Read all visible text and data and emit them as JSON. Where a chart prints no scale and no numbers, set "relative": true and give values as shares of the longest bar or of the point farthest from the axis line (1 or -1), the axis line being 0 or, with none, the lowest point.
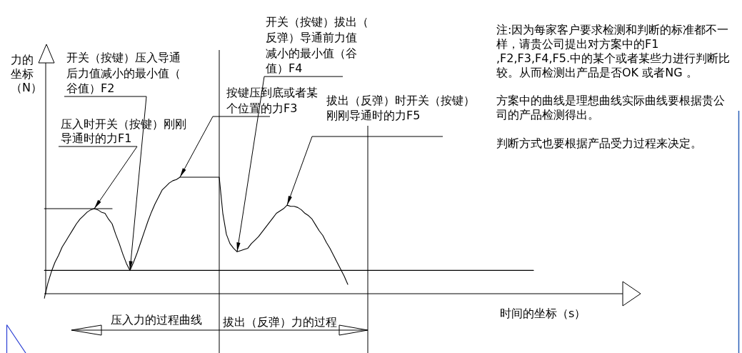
{
  "chart_data": {
    "type": "line",
    "relative": true,
    "tick_labels": false,
    "xlabel": "时间的坐标（s）",
    "categories": [
      null,
      null,
      null,
      null,
      null,
      null,
      null,
      null,
      null,
      null,
      null,
      null,
      null,
      null,
      null,
      null,
      null,
      null,
      null,
      null,
      null,
      null,
      null,
      null,
      null,
      null,
      null,
      null,
      null,
      null,
      null,
      null,
      null,
      null,
      null,
      null,
      null,
      null,
      null,
      null,
      null,
      null,
      null,
      null,
      null,
      null,
      null,
      null,
      null,
      null,
      null,
      null,
      null,
      null,
      null,
      null,
      null,
      null,
      null,
      null,
      null,
      null,
      null,
      null,
      null,
      null,
      null,
      null,
      null,
      null,
      null,
      null,
      null,
      null,
      null,
      null,
      null,
      null,
      null,
      null,
      null,
      null,
      null,
      null,
      null,
      null,
      null,
      null,
      null,
      null,
      null,
      null,
      null,
      null,
      null,
      null,
      null,
      null,
      null,
      null,
      null,
      null,
      null,
      null,
      null,
      null,
      null,
      null,
      null,
      null,
      null,
      null,
      null,
      null,
      null,
      null,
      null,
      null,
      null,
      null,
      null,
      null,
      null,
      null,
      null,
      null,
      null,
      null,
      null,
      null,
      null,
      null,
      null,
      null,
      null,
      null,
      null,
      null,
      null,
      null,
      null,
      null,
      null,
      null,
      null,
      null,
      null,
      null,
      null,
      null,
      null,
      null,
      null,
      null,
      null,
      null,
      null,
      null,
      null,
      null,
      null,
      null
    ],
    "series": [
      {
        "color": "#000000",
        "values": [
          -0.04,
          0.09,
          0.19,
          0.27,
          0.33,
          0.4,
          0.45,
          0.5,
          0.55,
          0.6,
          0.64,
          0.67,
          0.7,
          0.72,
          0.73,
          0.72,
          0.7,
          0.69,
          0.64,
          0.6,
          0.51,
          0.43,
          0.34,
          0.26,
          0.2,
          0.27,
          0.35,
          0.44,
          0.53,
          0.62,
          0.7,
          0.77,
          0.83,
          0.89,
          0.92,
          0.95,
          0.97,
          0.98,
          1,
          1,
          1,
          1,
          1,
          1,
          1,
          1,
          1,
          1,
          1,
          1,
          0.69,
          0.51,
          0.43,
          0.39,
          0.36,
          0.37,
          0.38,
          0.39,
          0.43,
          0.46,
          0.49,
          0.53,
          0.57,
          0.61,
          0.65,
          0.69,
          0.71,
          0.73,
          0.76,
          0.75,
          0.75,
          0.74,
          0.72,
          0.69,
          0.67,
          0.64,
          0.59,
          0.54,
          0.5,
          0.44,
          0.39,
          0.33,
          0.27,
          0.21,
          0.15,
          0.08,
          null,
          null,
          null,
          null,
          null,
          null,
          null,
          null,
          null,
          null,
          null,
          null,
          null,
          null,
          null,
          null,
          null,
          null,
          null,
          null,
          null,
          null,
          null,
          null,
          null,
          null,
          null,
          null,
          null,
          null,
          null,
          null,
          null,
          null,
          null,
          null,
          null,
          null,
          null,
          null,
          null,
          null,
          null,
          null,
          null,
          null,
          null,
          null,
          null,
          null,
          null,
          null,
          null,
          null,
          null,
          null,
          null,
          null,
          null,
          null,
          null,
          null,
          null,
          null,
          null,
          null,
          null,
          null,
          null,
          null,
          null,
          null,
          null,
          null,
          null,
          null
        ]
      },
      {
        "color": "#000000",
        "values": [
          0.73,
          0.73,
          0.73,
          0.73,
          0.73,
          0.73,
          0.73,
          0.73,
          0.73,
          0.73,
          0.73,
          0.73,
          0.73,
          0.73,
          0.73,
          0.73,
          0.73,
          0.73,
          0.73,
          0.73,
          null,
          null,
          null,
          null,
          null,
          null,
          null,
          null,
          null,
          null,
          null,
          null,
          null,
          null,
          null,
          null,
          null,
          null,
          null,
          null,
          null,
          null,
          null,
          null,
          null,
          null,
          null,
          null,
          null,
          null,
          null,
          null,
          null,
          null,
          null,
          null,
          null,
          null,
          null,
          null,
          null,
          null,
          null,
          null,
          null,
          null,
          null,
          null,
          null,
          null,
          null,
          null,
          null,
          null,
          null,
          null,
          null,
          null,
          null,
          null,
          null,
          null,
          null,
          null,
          null,
          null,
          null,
          null,
          null,
          null,
          null,
          null,
          null,
          null,
          null,
          null,
          null,
          null,
          null,
          null,
          null,
          null,
          null,
          null,
          null,
          null,
          null,
          null,
          null,
          null,
          null,
          null,
          null,
          null,
          null,
          null,
          null,
          null,
          null,
          null,
          null,
          null,
          null,
          null,
          null,
          null,
          null,
          null,
          null,
          null,
          null,
          null,
          null,
          null,
          null,
          null,
          null,
          null,
          null,
          null,
          null,
          null,
          null,
          null,
          null,
          null,
          null,
          null,
          null,
          null,
          null,
          null,
          null,
          null,
          null,
          null,
          null,
          null,
          null,
          null,
          null,
          null
        ]
      },
      {
        "color": "#000000",
        "values": [
          0.2,
          0.2,
          0.2,
          0.2,
          0.2,
          0.2,
          0.2,
          0.2,
          0.2,
          0.2,
          0.2,
          0.2,
          0.2,
          0.2,
          0.2,
          0.2,
          0.2,
          0.2,
          0.2,
          0.2,
          0.2,
          0.2,
          0.2,
          0.2,
          0.2,
          0.2,
          0.2,
          0.2,
          0.2,
          0.2,
          0.2,
          0.2,
          0.2,
          0.2,
          0.2,
          0.2,
          0.2,
          0.2,
          0.2,
          0.2,
          0.2,
          0.2,
          0.2,
          0.2,
          0.2,
          0.2,
          0.2,
          0.2,
          0.2,
          0.2,
          0.2,
          0.2,
          0.2,
          0.2,
          0.2,
          0.2,
          0.2,
          0.2,
          0.2,
          0.2,
          0.2,
          0.2,
          0.2,
          0.2,
          0.2,
          0.2,
          0.2,
          0.2,
          0.2,
          0.2,
          0.2,
          0.2,
          0.2,
          0.2,
          0.2,
          0.2,
          0.2,
          0.2,
          0.2,
          0.2,
          0.2,
          0.2,
          0.2,
          0.2,
          0.2,
          0.2,
          0.2,
          0.2,
          0.2,
          0.2,
          0.2,
          0.2,
          0.2,
          0.2,
          0.2,
          0.2,
          0.2,
          0.2,
          0.2,
          0.2,
          0.2,
          0.2,
          0.2,
          0.2,
          0.2,
          0.2,
          0.2,
          0.2,
          0.2,
          0.2,
          0.2,
          0.2,
          0.2,
          0.2,
          0.2,
          0.2,
          0.2,
          0.2,
          0.2,
          0.2,
          0.2,
          0.2,
          0.2,
          0.2,
          0.2,
          0.2,
          0.2,
          0.2,
          0.2,
          0.2,
          0.2,
          0.2,
          0.2,
          0.2,
          0.2,
          0.2,
          0.2,
          0.2,
          null,
          null,
          null,
          null,
          null,
          null,
          null,
          null,
          null,
          null,
          null,
          null,
          null,
          null,
          null,
          null,
          null,
          null,
          null,
          null,
          null,
          null,
          null,
          null
        ]
      }
    ],
    "annotations": [
      "压入时开关（按键）刚刚导通时的力F1",
      "开关（按键）压入导通后力值减小的最小值（谷值）F2",
      "按键压到底或者某个位置的力F3",
      "开关（按键）拔出（反弹）导通前力值减小的最小值（谷值）F4",
      "拔出（反弹）时开关（按键）刚刚导通时的力F5",
      "压入力的过程曲线",
      "拔出（反弹）力的过程",
      "注:因为每家客户要求检测和判断的标准都不一样，请贵公司提出对方案中的F1,F2,F3,F4,F5.中的某个或者某些力进行判断比较。从而检测出产品是否OK 或者NG 。",
      "方案中的曲线是理想曲线实际曲线要根据贵公司的产品检测得出。",
      "判断方式也要根据产品受力过程来决定。",
      "力的坐标（N）"
    ]
  }
}
